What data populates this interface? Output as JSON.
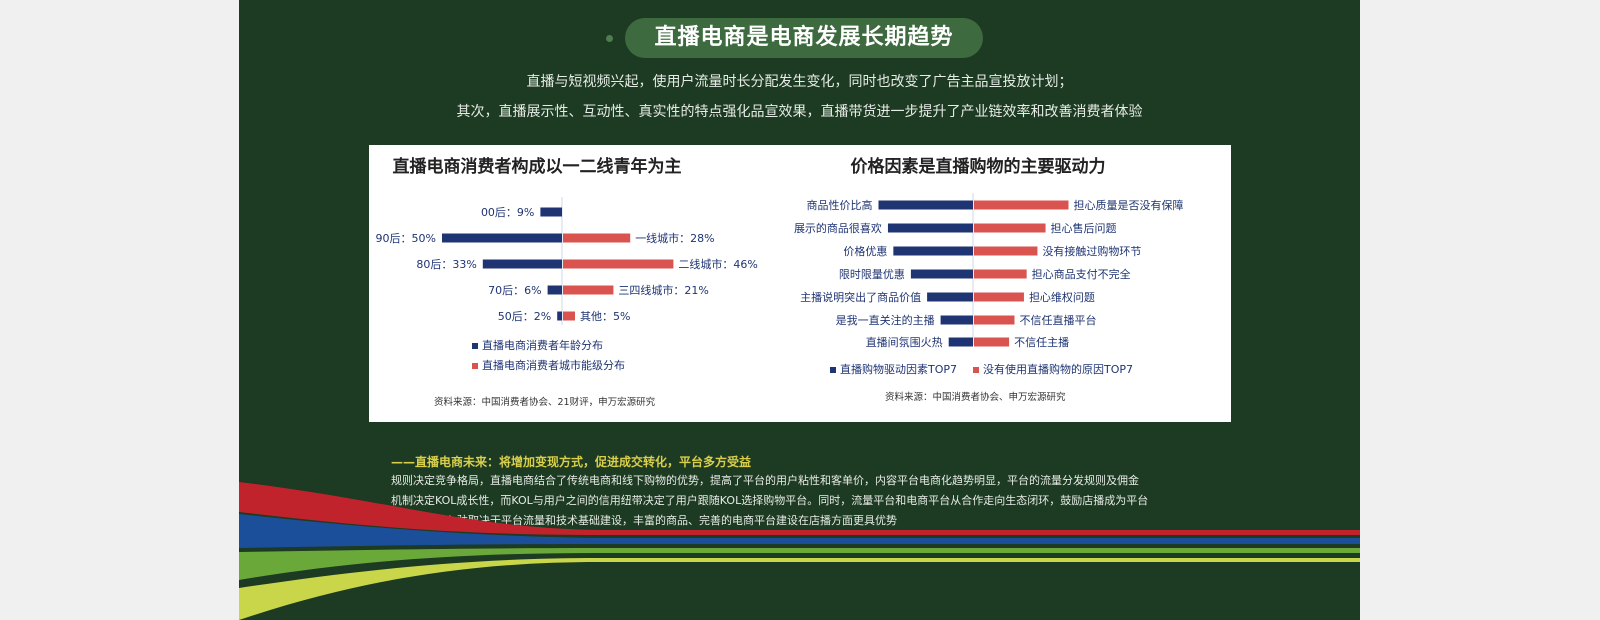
{
  "header": {
    "title": "直播电商是电商发展长期趋势",
    "subtitle_1": "直播与短视频兴起，使用户流量时长分配发生变化，同时也改变了广告主品宣投放计划；",
    "subtitle_2": "其次，直播展示性、互动性、真实性的特点强化品宣效果，直播带货进一步提升了产业链效率和改善消费者体验"
  },
  "chart_data": [
    {
      "type": "bar",
      "title": "直播电商消费者构成以一二线青年为主",
      "series": [
        {
          "name": "直播电商消费者年龄分布",
          "categories": [
            "00后",
            "90后",
            "80后",
            "70后",
            "50后"
          ],
          "values": [
            9,
            50,
            33,
            6,
            2
          ],
          "labels": [
            "00后：9%",
            "90后：50%",
            "80后：33%",
            "70后：6%",
            "50后：2%"
          ],
          "color": "#1f3473"
        },
        {
          "name": "直播电商消费者城市能级分布",
          "categories": [
            "一线城市",
            "二线城市",
            "三四线城市",
            "其他"
          ],
          "values": [
            28,
            46,
            21,
            5
          ],
          "labels": [
            "一线城市：28%",
            "二线城市：46%",
            "三四线城市：21%",
            "其他：5%"
          ],
          "color": "#d9534f"
        }
      ],
      "source": "资料来源：中国消费者协会、21财评，申万宏源研究"
    },
    {
      "type": "bar",
      "title": "价格因素是直播购物的主要驱动力",
      "series": [
        {
          "name": "直播购物驱动因素TOP7",
          "categories": [
            "商品性价比高",
            "展示的商品很喜欢",
            "价格优惠",
            "限时限量优惠",
            "主播说明突出了商品价值",
            "是我一直关注的主播",
            "直播间氛围火热"
          ],
          "values": [
            7,
            6.3,
            5.9,
            4.6,
            3.4,
            2.4,
            1.8
          ],
          "color": "#1f3473"
        },
        {
          "name": "没有使用直播购物的原因TOP7",
          "categories": [
            "担心质量是否没有保障",
            "担心售后问题",
            "没有接触过购物环节",
            "担心商品支付不完全",
            "担心维权问题",
            "不信任直播平台",
            "不信任主播"
          ],
          "values": [
            7,
            5.3,
            4.7,
            3.9,
            3.7,
            3.0,
            2.6
          ],
          "color": "#d9534f"
        }
      ],
      "source": "资料来源：中国消费者协会、申万宏源研究"
    }
  ],
  "future": {
    "title": "——直播电商未来：将增加变现方式，促进成交转化，平台多方受益",
    "line_1": "规则决定竞争格局，直播电商结合了传统电商和线下购物的优势，提高了平台的用户粘性和客单价，内容平台电商化趋势明显，平台的流量分发规则及佣金",
    "line_2": "机制决定KOL成长性，而KOL与用户之间的信用纽带决定了用户跟随KOL选择购物平台。同时，流量平台和电商平台从合作走向生态闭环，鼓励店播成为平台",
    "line_3": "共识，商家入驻取决于平台流量和技术基础建设，丰富的商品、完善的电商平台建设在店播方面更具优势"
  },
  "colors": {
    "background": "#1d3a22",
    "blue_bar": "#1f3473",
    "red_bar": "#d9534f",
    "stripe_red": "#c0232c",
    "stripe_blue": "#1b4f9a",
    "stripe_green": "#6aa83a",
    "stripe_yellow": "#c9d64a"
  }
}
